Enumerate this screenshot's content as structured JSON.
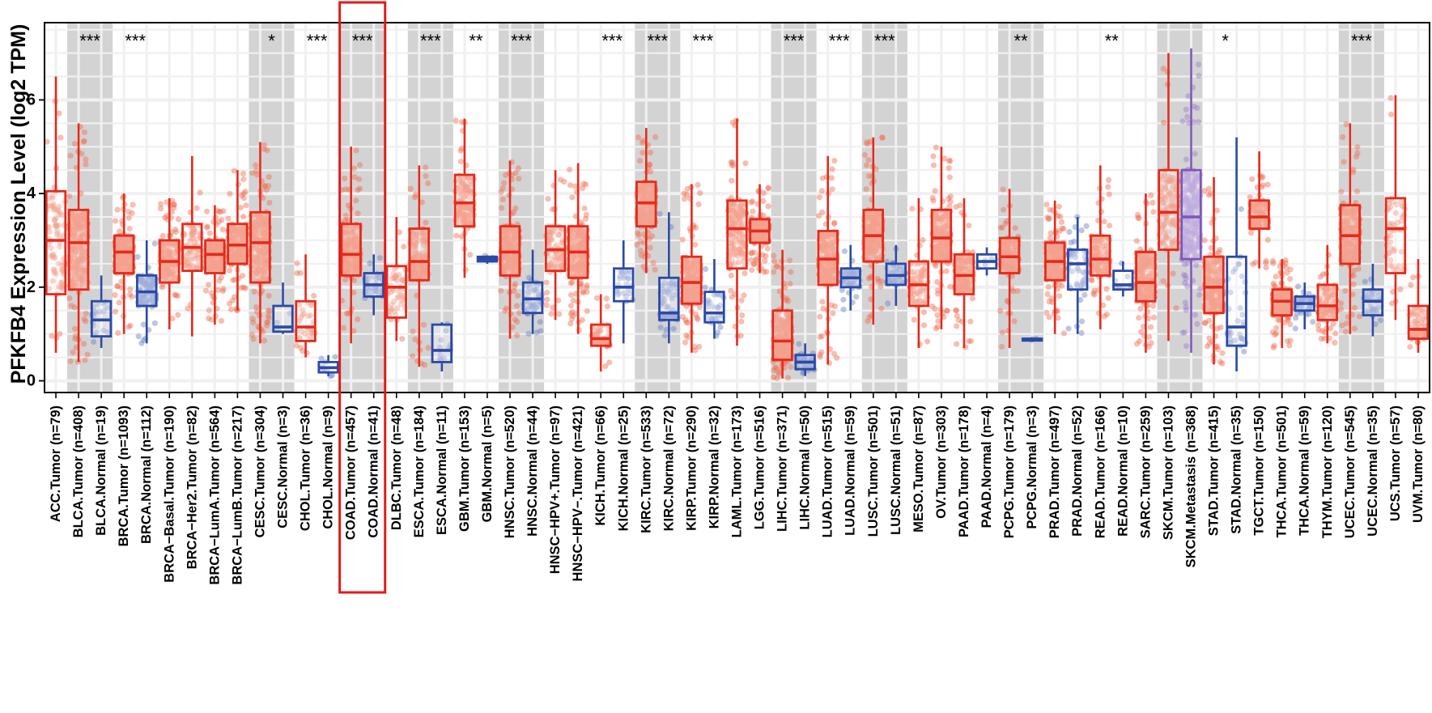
{
  "chart_data": {
    "type": "box",
    "ylabel": "PFKFB4 Expression Level (log2 TPM)",
    "ylim": [
      -0.25,
      7.65
    ],
    "yticks": [
      0,
      2,
      4,
      6
    ],
    "colors": {
      "tumor": "#e52a1c",
      "normal": "#2b4aa6",
      "metastasis": "#7e57b8",
      "highlight": "#e01b1b",
      "shade": "#d3d3d3"
    },
    "highlight_categories": [
      "COAD.Tumor (n=457)",
      "COAD.Normal (n=41)"
    ],
    "shaded_groups": [
      "BLCA",
      "CESC",
      "COAD",
      "ESCA",
      "HNSC",
      "KIRC",
      "LIHC",
      "LUSC",
      "PCPG",
      "SKCM",
      "UCEC"
    ],
    "boxes": [
      {
        "label": "ACC.Tumor (n=79)",
        "group": "ACC",
        "type": "tumor",
        "min": 0.6,
        "q1": 1.85,
        "median": 3.0,
        "q3": 4.05,
        "max": 6.5
      },
      {
        "label": "BLCA.Tumor (n=408)",
        "group": "BLCA",
        "type": "tumor",
        "min": 0.4,
        "q1": 1.95,
        "median": 2.95,
        "q3": 3.65,
        "max": 5.5
      },
      {
        "label": "BLCA.Normal (n=19)",
        "group": "BLCA",
        "type": "normal",
        "min": 0.7,
        "q1": 0.95,
        "median": 1.3,
        "q3": 1.7,
        "max": 2.25,
        "sig": "***"
      },
      {
        "label": "BRCA.Tumor (n=1093)",
        "group": "BRCA",
        "type": "tumor",
        "min": 1.0,
        "q1": 2.3,
        "median": 2.75,
        "q3": 3.1,
        "max": 4.0
      },
      {
        "label": "BRCA.Normal (n=112)",
        "group": "BRCA",
        "type": "normal",
        "min": 0.8,
        "q1": 1.6,
        "median": 1.9,
        "q3": 2.25,
        "max": 3.0,
        "sig": "***"
      },
      {
        "label": "BRCA−Basal.Tumor (n=190)",
        "group": "BRCA-Basal",
        "type": "tumor",
        "min": 1.1,
        "q1": 2.1,
        "median": 2.55,
        "q3": 3.0,
        "max": 3.9
      },
      {
        "label": "BRCA−Her2.Tumor (n=82)",
        "group": "BRCA-Her2",
        "type": "tumor",
        "min": 0.95,
        "q1": 2.35,
        "median": 2.85,
        "q3": 3.35,
        "max": 4.8
      },
      {
        "label": "BRCA−LumA.Tumor (n=564)",
        "group": "BRCA-LumA",
        "type": "tumor",
        "min": 1.2,
        "q1": 2.3,
        "median": 2.7,
        "q3": 3.0,
        "max": 3.75
      },
      {
        "label": "BRCA−LumB.Tumor (n=217)",
        "group": "BRCA-LumB",
        "type": "tumor",
        "min": 1.5,
        "q1": 2.5,
        "median": 2.9,
        "q3": 3.35,
        "max": 4.5
      },
      {
        "label": "CESC.Tumor (n=304)",
        "group": "CESC",
        "type": "tumor",
        "min": 0.8,
        "q1": 2.1,
        "median": 2.95,
        "q3": 3.6,
        "max": 5.1
      },
      {
        "label": "CESC.Normal (n=3)",
        "group": "CESC",
        "type": "normal",
        "min": 1.0,
        "q1": 1.05,
        "median": 1.15,
        "q3": 1.6,
        "max": 2.1,
        "sig": "*"
      },
      {
        "label": "CHOL.Tumor (n=36)",
        "group": "CHOL",
        "type": "tumor",
        "min": 0.5,
        "q1": 0.85,
        "median": 1.15,
        "q3": 1.7,
        "max": 2.7
      },
      {
        "label": "CHOL.Normal (n=9)",
        "group": "CHOL",
        "type": "normal",
        "min": 0.1,
        "q1": 0.18,
        "median": 0.28,
        "q3": 0.4,
        "max": 0.55,
        "sig": "***"
      },
      {
        "label": "COAD.Tumor (n=457)",
        "group": "COAD",
        "type": "tumor",
        "min": 0.8,
        "q1": 2.25,
        "median": 2.7,
        "q3": 3.35,
        "max": 5.0
      },
      {
        "label": "COAD.Normal (n=41)",
        "group": "COAD",
        "type": "normal",
        "min": 1.4,
        "q1": 1.8,
        "median": 2.05,
        "q3": 2.3,
        "max": 2.7,
        "sig": "***"
      },
      {
        "label": "DLBC.Tumor (n=48)",
        "group": "DLBC",
        "type": "tumor",
        "min": 0.85,
        "q1": 1.35,
        "median": 2.0,
        "q3": 2.45,
        "max": 3.5
      },
      {
        "label": "ESCA.Tumor (n=184)",
        "group": "ESCA",
        "type": "tumor",
        "min": 0.3,
        "q1": 2.15,
        "median": 2.55,
        "q3": 3.25,
        "max": 4.6
      },
      {
        "label": "ESCA.Normal (n=11)",
        "group": "ESCA",
        "type": "normal",
        "min": 0.2,
        "q1": 0.4,
        "median": 0.65,
        "q3": 1.2,
        "max": 1.25,
        "sig": "***"
      },
      {
        "label": "GBM.Tumor (n=153)",
        "group": "GBM",
        "type": "tumor",
        "min": 2.2,
        "q1": 3.3,
        "median": 3.8,
        "q3": 4.4,
        "max": 5.6
      },
      {
        "label": "GBM.Normal (n=5)",
        "group": "GBM",
        "type": "normal",
        "min": 2.5,
        "q1": 2.55,
        "median": 2.6,
        "q3": 2.65,
        "max": 2.68,
        "sig": "**"
      },
      {
        "label": "HNSC.Tumor (n=520)",
        "group": "HNSC",
        "type": "tumor",
        "min": 0.9,
        "q1": 2.25,
        "median": 2.75,
        "q3": 3.3,
        "max": 4.7
      },
      {
        "label": "HNSC.Normal (n=44)",
        "group": "HNSC",
        "type": "normal",
        "min": 1.0,
        "q1": 1.45,
        "median": 1.75,
        "q3": 2.1,
        "max": 2.8,
        "sig": "***"
      },
      {
        "label": "HNSC−HPV+.Tumor (n=97)",
        "group": "HNSC-HPV+",
        "type": "tumor",
        "min": 1.3,
        "q1": 2.35,
        "median": 2.8,
        "q3": 3.3,
        "max": 4.5
      },
      {
        "label": "HNSC−HPV−.Tumor (n=421)",
        "group": "HNSC-HPV-",
        "type": "tumor",
        "min": 1.0,
        "q1": 2.2,
        "median": 2.75,
        "q3": 3.3,
        "max": 4.65
      },
      {
        "label": "KICH.Tumor (n=66)",
        "group": "KICH",
        "type": "tumor",
        "min": 0.2,
        "q1": 0.75,
        "median": 0.9,
        "q3": 1.2,
        "max": 1.85
      },
      {
        "label": "KICH.Normal (n=25)",
        "group": "KICH",
        "type": "normal",
        "min": 0.8,
        "q1": 1.7,
        "median": 2.0,
        "q3": 2.4,
        "max": 3.0,
        "sig": "***"
      },
      {
        "label": "KIRC.Tumor (n=533)",
        "group": "KIRC",
        "type": "tumor",
        "min": 2.3,
        "q1": 3.3,
        "median": 3.8,
        "q3": 4.25,
        "max": 5.4
      },
      {
        "label": "KIRC.Normal (n=72)",
        "group": "KIRC",
        "type": "normal",
        "min": 0.8,
        "q1": 1.3,
        "median": 1.45,
        "q3": 2.2,
        "max": 3.6,
        "sig": "***"
      },
      {
        "label": "KIRP.Tumor (n=290)",
        "group": "KIRP",
        "type": "tumor",
        "min": 0.6,
        "q1": 1.65,
        "median": 2.1,
        "q3": 2.65,
        "max": 4.2
      },
      {
        "label": "KIRP.Normal (n=32)",
        "group": "KIRP",
        "type": "normal",
        "min": 0.9,
        "q1": 1.25,
        "median": 1.45,
        "q3": 1.9,
        "max": 2.6,
        "sig": "***"
      },
      {
        "label": "LAML.Tumor (n=173)",
        "group": "LAML",
        "type": "tumor",
        "min": 0.75,
        "q1": 2.4,
        "median": 3.25,
        "q3": 3.85,
        "max": 5.6
      },
      {
        "label": "LGG.Tumor (n=516)",
        "group": "LGG",
        "type": "tumor",
        "min": 2.3,
        "q1": 2.95,
        "median": 3.2,
        "q3": 3.45,
        "max": 4.2
      },
      {
        "label": "LIHC.Tumor (n=371)",
        "group": "LIHC",
        "type": "tumor",
        "min": 0.05,
        "q1": 0.45,
        "median": 0.85,
        "q3": 1.5,
        "max": 2.8
      },
      {
        "label": "LIHC.Normal (n=50)",
        "group": "LIHC",
        "type": "normal",
        "min": 0.1,
        "q1": 0.25,
        "median": 0.4,
        "q3": 0.55,
        "max": 0.8,
        "sig": "***"
      },
      {
        "label": "LUAD.Tumor (n=515)",
        "group": "LUAD",
        "type": "tumor",
        "min": 0.35,
        "q1": 2.05,
        "median": 2.6,
        "q3": 3.2,
        "max": 4.8
      },
      {
        "label": "LUAD.Normal (n=59)",
        "group": "LUAD",
        "type": "normal",
        "min": 1.5,
        "q1": 2.0,
        "median": 2.2,
        "q3": 2.4,
        "max": 2.9,
        "sig": "***"
      },
      {
        "label": "LUSC.Tumor (n=501)",
        "group": "LUSC",
        "type": "tumor",
        "min": 1.2,
        "q1": 2.55,
        "median": 3.1,
        "q3": 3.65,
        "max": 5.2
      },
      {
        "label": "LUSC.Normal (n=51)",
        "group": "LUSC",
        "type": "normal",
        "min": 1.6,
        "q1": 2.05,
        "median": 2.25,
        "q3": 2.5,
        "max": 2.9,
        "sig": "***"
      },
      {
        "label": "MESO.Tumor (n=87)",
        "group": "MESO",
        "type": "tumor",
        "min": 0.7,
        "q1": 1.6,
        "median": 2.05,
        "q3": 2.55,
        "max": 3.9
      },
      {
        "label": "OV.Tumor (n=303)",
        "group": "OV",
        "type": "tumor",
        "min": 1.1,
        "q1": 2.55,
        "median": 3.05,
        "q3": 3.65,
        "max": 5.0
      },
      {
        "label": "PAAD.Tumor (n=178)",
        "group": "PAAD",
        "type": "tumor",
        "min": 0.7,
        "q1": 1.85,
        "median": 2.25,
        "q3": 2.7,
        "max": 3.9
      },
      {
        "label": "PAAD.Normal (n=4)",
        "group": "PAAD",
        "type": "normal",
        "min": 2.25,
        "q1": 2.4,
        "median": 2.55,
        "q3": 2.7,
        "max": 2.85
      },
      {
        "label": "PCPG.Tumor (n=179)",
        "group": "PCPG",
        "type": "tumor",
        "min": 0.7,
        "q1": 2.3,
        "median": 2.65,
        "q3": 3.05,
        "max": 4.1
      },
      {
        "label": "PCPG.Normal (n=3)",
        "group": "PCPG",
        "type": "normal",
        "min": 0.85,
        "q1": 0.86,
        "median": 0.88,
        "q3": 0.9,
        "max": 0.92,
        "sig": "**"
      },
      {
        "label": "PRAD.Tumor (n=497)",
        "group": "PRAD",
        "type": "tumor",
        "min": 1.0,
        "q1": 2.15,
        "median": 2.55,
        "q3": 2.95,
        "max": 3.85
      },
      {
        "label": "PRAD.Normal (n=52)",
        "group": "PRAD",
        "type": "normal",
        "min": 1.0,
        "q1": 1.95,
        "median": 2.5,
        "q3": 2.8,
        "max": 3.5
      },
      {
        "label": "READ.Tumor (n=166)",
        "group": "READ",
        "type": "tumor",
        "min": 1.1,
        "q1": 2.25,
        "median": 2.6,
        "q3": 3.1,
        "max": 4.6
      },
      {
        "label": "READ.Normal (n=10)",
        "group": "READ",
        "type": "normal",
        "min": 1.8,
        "q1": 1.95,
        "median": 2.05,
        "q3": 2.35,
        "max": 2.55,
        "sig": "**"
      },
      {
        "label": "SARC.Tumor (n=259)",
        "group": "SARC",
        "type": "tumor",
        "min": 0.6,
        "q1": 1.7,
        "median": 2.1,
        "q3": 2.75,
        "max": 4.0
      },
      {
        "label": "SKCM.Tumor (n=103)",
        "group": "SKCM",
        "type": "tumor",
        "min": 0.85,
        "q1": 2.8,
        "median": 3.6,
        "q3": 4.5,
        "max": 7.0
      },
      {
        "label": "SKCM.Metastasis (n=368)",
        "group": "SKCM",
        "type": "metastasis",
        "min": 0.6,
        "q1": 2.6,
        "median": 3.5,
        "q3": 4.5,
        "max": 7.1
      },
      {
        "label": "STAD.Tumor (n=415)",
        "group": "STAD",
        "type": "tumor",
        "min": 0.35,
        "q1": 1.45,
        "median": 2.0,
        "q3": 2.65,
        "max": 4.35
      },
      {
        "label": "STAD.Normal (n=35)",
        "group": "STAD",
        "type": "normal",
        "min": 0.2,
        "q1": 0.75,
        "median": 1.15,
        "q3": 2.65,
        "max": 5.2,
        "sig": "*"
      },
      {
        "label": "TGCT.Tumor (n=150)",
        "group": "TGCT",
        "type": "tumor",
        "min": 2.4,
        "q1": 3.25,
        "median": 3.5,
        "q3": 3.85,
        "max": 4.9
      },
      {
        "label": "THCA.Tumor (n=501)",
        "group": "THCA",
        "type": "tumor",
        "min": 0.7,
        "q1": 1.4,
        "median": 1.7,
        "q3": 1.95,
        "max": 2.6
      },
      {
        "label": "THCA.Normal (n=59)",
        "group": "THCA",
        "type": "normal",
        "min": 1.1,
        "q1": 1.5,
        "median": 1.65,
        "q3": 1.8,
        "max": 2.1
      },
      {
        "label": "THYM.Tumor (n=120)",
        "group": "THYM",
        "type": "tumor",
        "min": 0.8,
        "q1": 1.3,
        "median": 1.6,
        "q3": 2.05,
        "max": 2.9
      },
      {
        "label": "UCEC.Tumor (n=545)",
        "group": "UCEC",
        "type": "tumor",
        "min": 1.0,
        "q1": 2.5,
        "median": 3.1,
        "q3": 3.75,
        "max": 5.5
      },
      {
        "label": "UCEC.Normal (n=35)",
        "group": "UCEC",
        "type": "normal",
        "min": 0.95,
        "q1": 1.4,
        "median": 1.7,
        "q3": 1.95,
        "max": 2.5,
        "sig": "***"
      },
      {
        "label": "UCS.Tumor (n=57)",
        "group": "UCS",
        "type": "tumor",
        "min": 1.3,
        "q1": 2.3,
        "median": 3.25,
        "q3": 3.9,
        "max": 6.1
      },
      {
        "label": "UVM.Tumor (n=80)",
        "group": "UVM",
        "type": "tumor",
        "min": 0.6,
        "q1": 0.9,
        "median": 1.1,
        "q3": 1.6,
        "max": 2.6
      }
    ]
  }
}
